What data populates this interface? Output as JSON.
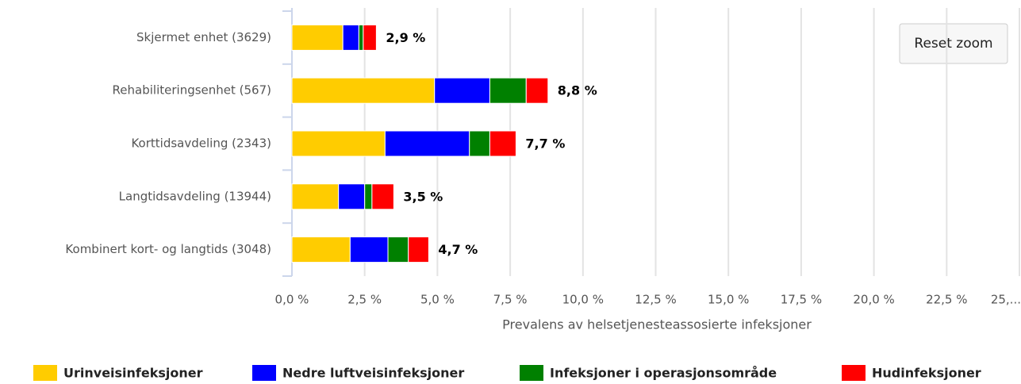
{
  "chart_data": {
    "type": "stacked_barh",
    "categories": [
      "Skjermet enhet (3629)",
      "Rehabiliteringsenhet (567)",
      "Korttidsavdeling (2343)",
      "Langtidsavdeling (13944)",
      "Kombinert kort- og langtids (3048)"
    ],
    "series": [
      {
        "name": "Urinveisinfeksjoner",
        "color": "#ffcc00",
        "values": [
          1.75,
          4.9,
          3.2,
          1.6,
          2.0
        ]
      },
      {
        "name": "Nedre luftveisinfeksjoner",
        "color": "#0000ff",
        "values": [
          0.55,
          1.9,
          2.9,
          0.9,
          1.3
        ]
      },
      {
        "name": "Infeksjoner i operasjonsområde",
        "color": "#008000",
        "values": [
          0.15,
          1.25,
          0.7,
          0.25,
          0.7
        ]
      },
      {
        "name": "Hudinfeksjoner",
        "color": "#ff0000",
        "values": [
          0.45,
          0.75,
          0.9,
          0.75,
          0.7
        ]
      }
    ],
    "total_labels": [
      "2,9 %",
      "8,8 %",
      "7,7 %",
      "3,5 %",
      "4,7 %"
    ],
    "xlabel": "Prevalens av helsetjenesteassosierte infeksjoner",
    "xlim": [
      0,
      25
    ],
    "xticks": [
      {
        "value": 0,
        "label": "0,0 %"
      },
      {
        "value": 2.5,
        "label": "2,5 %"
      },
      {
        "value": 5,
        "label": "5,0 %"
      },
      {
        "value": 7.5,
        "label": "7,5 %"
      },
      {
        "value": 10,
        "label": "10,0 %"
      },
      {
        "value": 12.5,
        "label": "12,5 %"
      },
      {
        "value": 15,
        "label": "15,0 %"
      },
      {
        "value": 17.5,
        "label": "17,5 %"
      },
      {
        "value": 20,
        "label": "20,0 %"
      },
      {
        "value": 22.5,
        "label": "22,5 %"
      },
      {
        "value": 25,
        "label": "25,..."
      }
    ],
    "grid": true,
    "legend": "bottom",
    "button": "Reset zoom"
  }
}
